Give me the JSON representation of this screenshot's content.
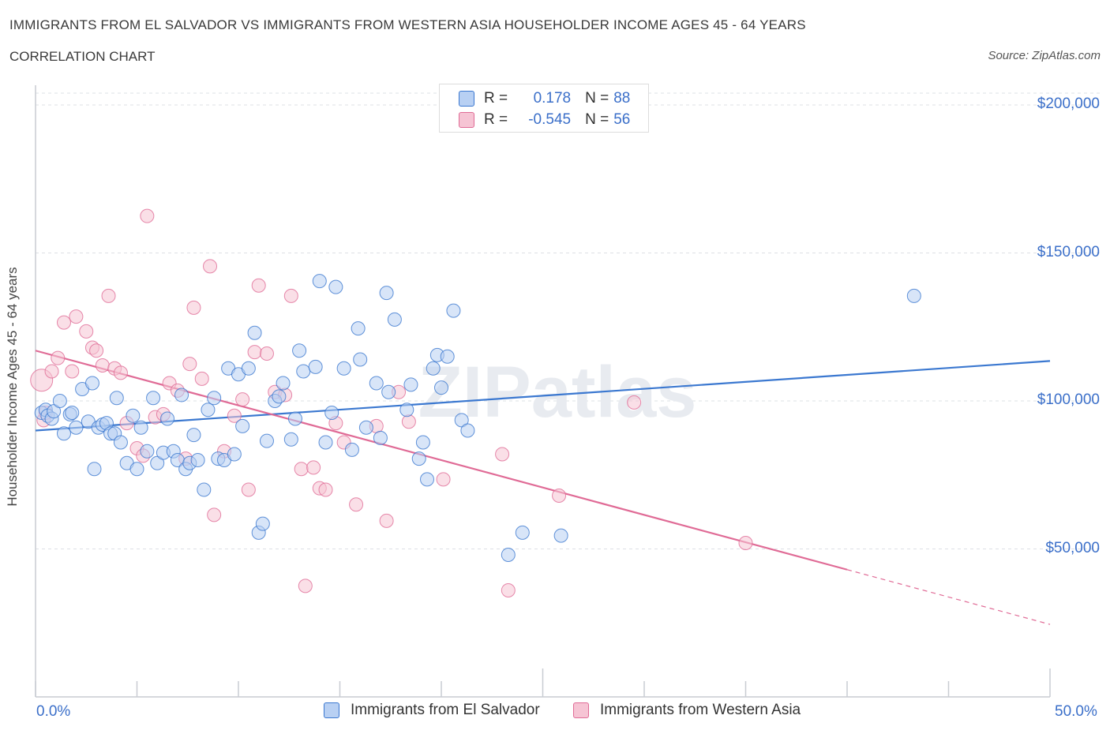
{
  "title": "IMMIGRANTS FROM EL SALVADOR VS IMMIGRANTS FROM WESTERN ASIA HOUSEHOLDER INCOME AGES 45 - 64 YEARS",
  "subtitle": "CORRELATION CHART",
  "source": "Source: ZipAtlas.com",
  "watermark": "ZIPatlas",
  "legend": {
    "r_label": "R =",
    "n_label": "N =",
    "rows": [
      {
        "r": "0.178",
        "n": "88"
      },
      {
        "r": "-0.545",
        "n": "56"
      }
    ]
  },
  "colors": {
    "blue": "#3b78d0",
    "blue_fill": "#b8d0f3",
    "pink": "#e06b96",
    "pink_fill": "#f6c4d4",
    "axis_text": "#3b6fc9"
  },
  "chart_data": {
    "type": "scatter",
    "xlabel": "",
    "ylabel": "Householder Income Ages 45 - 64 years",
    "xlim": [
      0,
      50
    ],
    "ylim": [
      0,
      200000
    ],
    "x_tick_labels": [
      "0.0%",
      "50.0%"
    ],
    "y_tick_values": [
      50000,
      100000,
      150000,
      200000
    ],
    "y_tick_labels": [
      "$50,000",
      "$100,000",
      "$150,000",
      "$200,000"
    ],
    "grid": true,
    "series": [
      {
        "name": "Immigrants from El Salvador",
        "color": "#3b78d0",
        "trend": {
          "x": [
            0,
            50
          ],
          "y": [
            90000,
            113500
          ]
        },
        "points": [
          [
            0.3,
            96000
          ],
          [
            0.5,
            97000
          ],
          [
            0.6,
            95000
          ],
          [
            0.8,
            94000
          ],
          [
            0.9,
            96500
          ],
          [
            1.2,
            100000
          ],
          [
            1.4,
            89000
          ],
          [
            1.7,
            95500
          ],
          [
            1.8,
            96000
          ],
          [
            2.0,
            91000
          ],
          [
            2.3,
            104000
          ],
          [
            2.6,
            93000
          ],
          [
            2.8,
            106000
          ],
          [
            2.9,
            77000
          ],
          [
            3.1,
            91000
          ],
          [
            3.3,
            92000
          ],
          [
            3.5,
            92500
          ],
          [
            3.7,
            89000
          ],
          [
            3.9,
            89000
          ],
          [
            4.0,
            101000
          ],
          [
            4.2,
            86000
          ],
          [
            4.5,
            79000
          ],
          [
            4.8,
            95000
          ],
          [
            5.0,
            77000
          ],
          [
            5.2,
            91000
          ],
          [
            5.5,
            83000
          ],
          [
            5.8,
            101000
          ],
          [
            6.0,
            79000
          ],
          [
            6.3,
            82500
          ],
          [
            6.5,
            94000
          ],
          [
            6.8,
            83000
          ],
          [
            7.0,
            80000
          ],
          [
            7.2,
            102000
          ],
          [
            7.4,
            77000
          ],
          [
            7.6,
            79000
          ],
          [
            7.8,
            88500
          ],
          [
            8.0,
            80000
          ],
          [
            8.3,
            70000
          ],
          [
            8.5,
            97000
          ],
          [
            8.8,
            101000
          ],
          [
            9.0,
            80500
          ],
          [
            9.3,
            80000
          ],
          [
            9.5,
            111000
          ],
          [
            9.8,
            82000
          ],
          [
            10.0,
            109000
          ],
          [
            10.2,
            91500
          ],
          [
            10.5,
            111000
          ],
          [
            10.8,
            123000
          ],
          [
            11.0,
            55500
          ],
          [
            11.2,
            58500
          ],
          [
            11.4,
            86500
          ],
          [
            11.8,
            100000
          ],
          [
            12.0,
            101500
          ],
          [
            12.2,
            106000
          ],
          [
            12.6,
            87000
          ],
          [
            13.0,
            117000
          ],
          [
            13.2,
            110000
          ],
          [
            12.8,
            94000
          ],
          [
            13.8,
            111500
          ],
          [
            14.0,
            140500
          ],
          [
            14.3,
            86000
          ],
          [
            14.6,
            96000
          ],
          [
            14.8,
            138500
          ],
          [
            15.2,
            111000
          ],
          [
            15.6,
            83500
          ],
          [
            15.9,
            124500
          ],
          [
            16.0,
            114000
          ],
          [
            16.3,
            91000
          ],
          [
            16.8,
            106000
          ],
          [
            17.0,
            87500
          ],
          [
            17.3,
            136500
          ],
          [
            17.4,
            103000
          ],
          [
            17.7,
            127500
          ],
          [
            18.3,
            97000
          ],
          [
            18.5,
            105500
          ],
          [
            18.9,
            80500
          ],
          [
            19.3,
            73500
          ],
          [
            19.1,
            86000
          ],
          [
            19.6,
            111000
          ],
          [
            19.8,
            115500
          ],
          [
            20.0,
            104500
          ],
          [
            20.3,
            115000
          ],
          [
            20.6,
            130500
          ],
          [
            21.0,
            93500
          ],
          [
            21.3,
            90000
          ],
          [
            23.3,
            48000
          ],
          [
            24.0,
            55500
          ],
          [
            25.9,
            54500
          ],
          [
            43.3,
            135500
          ]
        ]
      },
      {
        "name": "Immigrants from Western Asia",
        "color": "#e06b96",
        "trend": {
          "x": [
            0,
            50
          ],
          "y": [
            117000,
            24500
          ],
          "solid_to_x": 40
        },
        "points": [
          [
            0.3,
            107000
          ],
          [
            0.4,
            93500
          ],
          [
            0.5,
            96000
          ],
          [
            0.8,
            110000
          ],
          [
            1.1,
            114500
          ],
          [
            1.4,
            126500
          ],
          [
            1.8,
            110000
          ],
          [
            2.0,
            128500
          ],
          [
            2.5,
            123500
          ],
          [
            2.8,
            118000
          ],
          [
            3.0,
            117000
          ],
          [
            3.3,
            112000
          ],
          [
            3.6,
            135500
          ],
          [
            3.9,
            111000
          ],
          [
            4.2,
            109500
          ],
          [
            4.5,
            92500
          ],
          [
            5.0,
            84000
          ],
          [
            5.3,
            81500
          ],
          [
            5.5,
            162500
          ],
          [
            5.9,
            94500
          ],
          [
            6.3,
            95500
          ],
          [
            6.6,
            106000
          ],
          [
            7.0,
            103500
          ],
          [
            7.4,
            80500
          ],
          [
            7.6,
            112500
          ],
          [
            7.8,
            131500
          ],
          [
            8.2,
            107500
          ],
          [
            8.6,
            145500
          ],
          [
            8.8,
            61500
          ],
          [
            9.3,
            83000
          ],
          [
            9.8,
            95000
          ],
          [
            10.2,
            100500
          ],
          [
            10.5,
            70000
          ],
          [
            10.8,
            116500
          ],
          [
            11.0,
            139000
          ],
          [
            11.4,
            116000
          ],
          [
            11.8,
            103000
          ],
          [
            12.3,
            102000
          ],
          [
            12.6,
            135500
          ],
          [
            13.1,
            77000
          ],
          [
            13.3,
            37500
          ],
          [
            13.7,
            77500
          ],
          [
            14.0,
            70500
          ],
          [
            14.3,
            70000
          ],
          [
            14.8,
            92500
          ],
          [
            15.2,
            86000
          ],
          [
            15.8,
            65000
          ],
          [
            16.8,
            91500
          ],
          [
            17.3,
            59500
          ],
          [
            17.9,
            103000
          ],
          [
            18.4,
            93000
          ],
          [
            20.1,
            73500
          ],
          [
            23.0,
            82000
          ],
          [
            23.3,
            36000
          ],
          [
            25.8,
            68000
          ],
          [
            29.5,
            99500
          ],
          [
            35.0,
            52000
          ]
        ]
      }
    ]
  }
}
